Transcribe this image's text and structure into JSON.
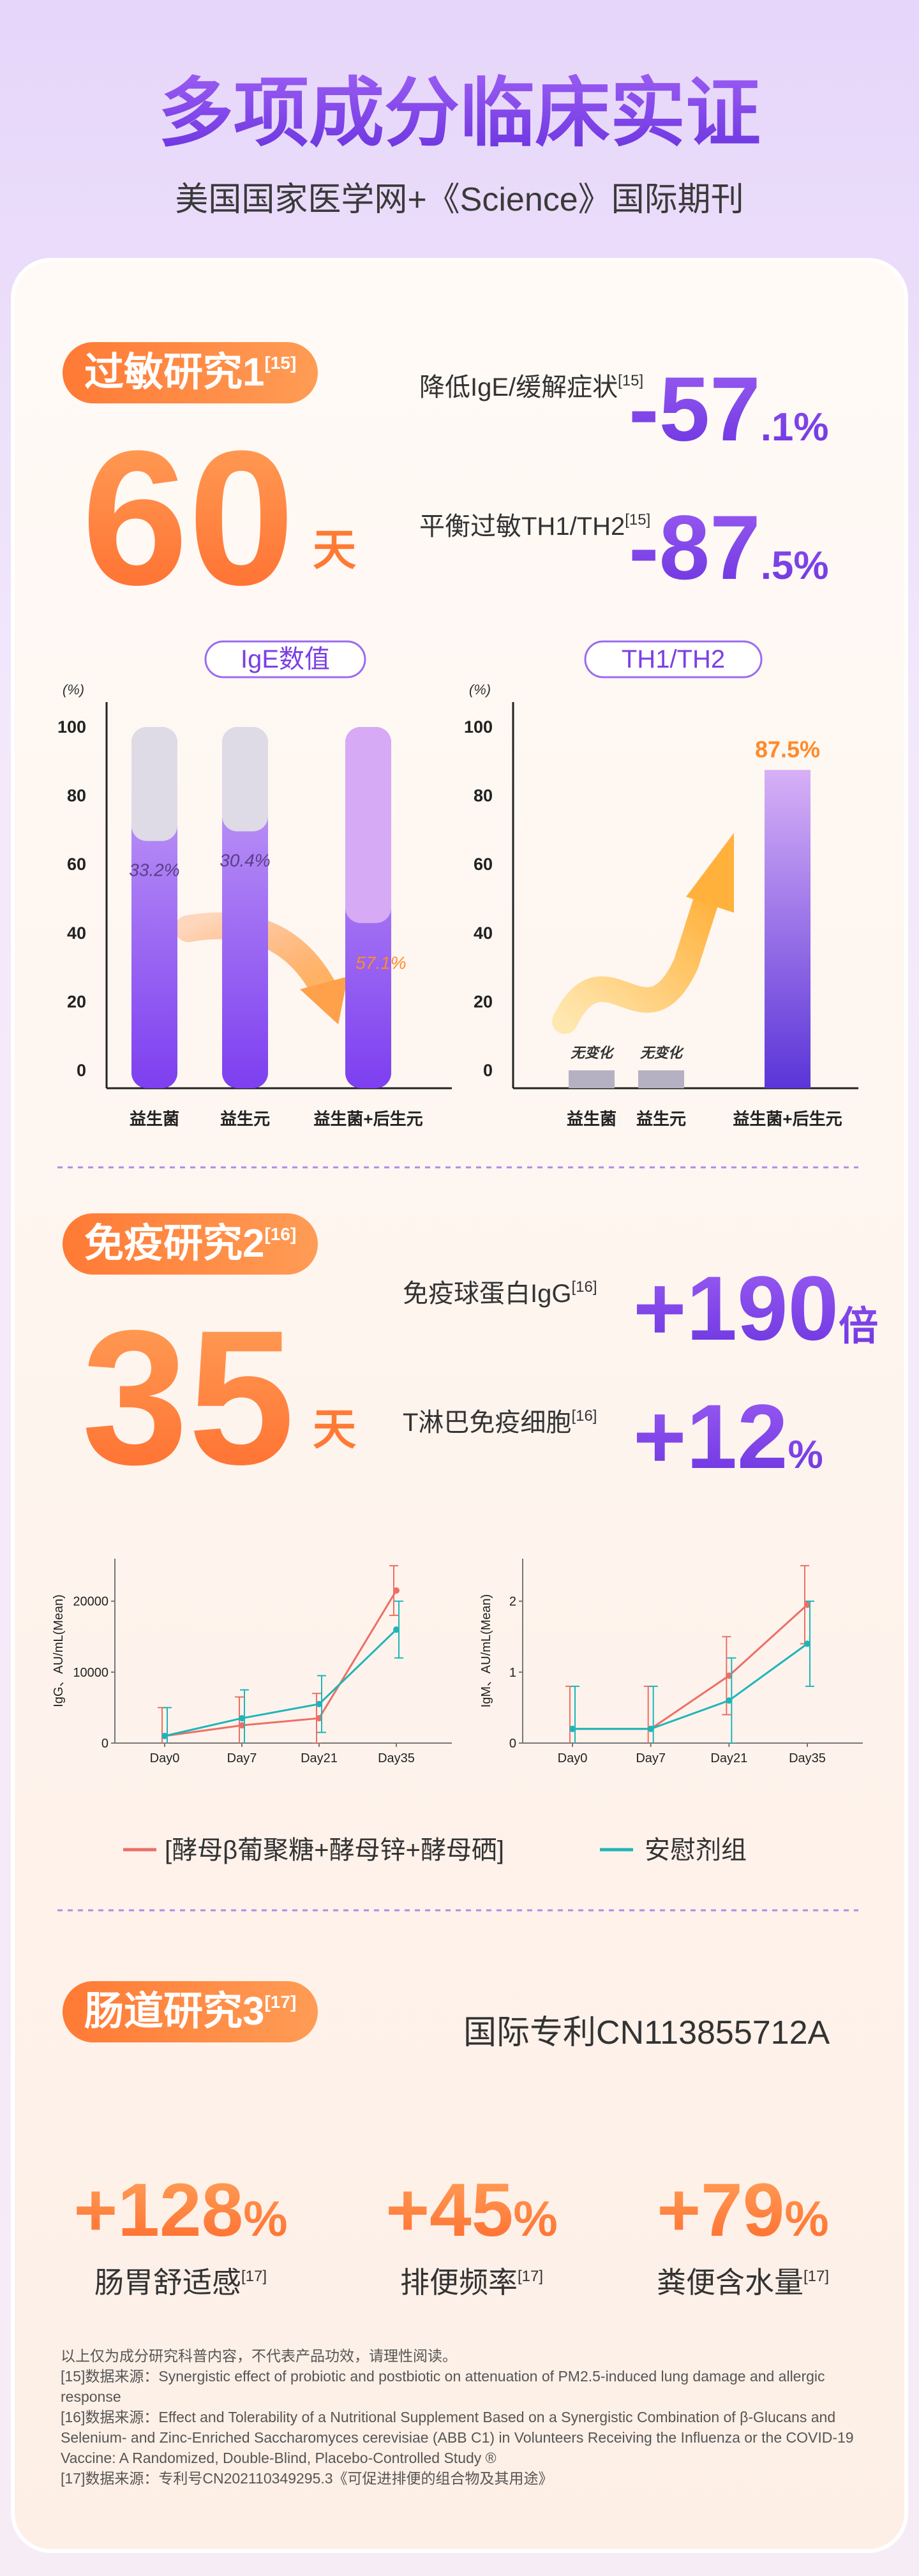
{
  "header": {
    "title": "多项成分临床实证",
    "subtitle": "美国国家医学网+《Science》国际期刊"
  },
  "study1": {
    "badge": "过敏研究1",
    "badge_ref": "[15]",
    "days": "60",
    "days_unit": "天",
    "stats": [
      {
        "label": "降低IgE/缓解症状",
        "ref": "[15]",
        "main": "-57",
        "suffix": ".1%"
      },
      {
        "label": "平衡过敏TH1/TH2",
        "ref": "[15]",
        "main": "-87",
        "suffix": ".5%"
      }
    ]
  },
  "study2": {
    "badge": "免疫研究2",
    "badge_ref": "[16]",
    "days": "35",
    "days_unit": "天",
    "stats": [
      {
        "label": "免疫球蛋白IgG",
        "ref": "[16]",
        "main": "+190",
        "suffix": "倍"
      },
      {
        "label": "T淋巴免疫细胞",
        "ref": "[16]",
        "main": "+12",
        "suffix": "%"
      }
    ]
  },
  "study3": {
    "badge": "肠道研究3",
    "badge_ref": "[17]",
    "patent": "国际专利CN113855712A",
    "stats": [
      {
        "main": "+128",
        "suffix": "%",
        "label": "肠胃舒适感",
        "ref": "[17]"
      },
      {
        "main": "+45",
        "suffix": "%",
        "label": "排便频率",
        "ref": "[17]"
      },
      {
        "main": "+79",
        "suffix": "%",
        "label": "粪便含水量",
        "ref": "[17]"
      }
    ]
  },
  "footnotes": [
    "以上仅为成分研究科普内容，不代表产品功效，请理性阅读。",
    "[15]数据来源：Synergistic effect of probiotic and postbiotic on attenuation of PM2.5-induced lung damage and allergic response",
    "[16]数据来源：Effect and Tolerability of a Nutritional Supplement Based on a Synergistic Combination of β-Glucans and Selenium- and Zinc-Enriched Saccharomyces cerevisiae (ABB C1) in Volunteers Receiving the Influenza or the COVID-19 Vaccine: A Randomized, Double-Blind, Placebo-Controlled Study ®",
    "[17]数据来源：专利号CN202110349295.3《可促进排便的组合物及其用途》"
  ],
  "chart_data": [
    {
      "type": "bar",
      "title": "IgE数值",
      "y_unit": "(%)",
      "categories": [
        "益生菌",
        "益生元",
        "益生菌+后生元"
      ],
      "values": [
        33.2,
        30.4,
        57.1
      ],
      "value_labels": [
        "33.2%",
        "30.4%",
        "57.1%"
      ],
      "color": "#8a4cf2",
      "reduction_colors": [
        "#dedbe6",
        "#dedbe6",
        "#d6aaf5"
      ],
      "ylim": [
        0,
        100
      ],
      "yticks": [
        0,
        20,
        40,
        60,
        80,
        100
      ]
    },
    {
      "type": "bar",
      "title": "TH1/TH2",
      "y_unit": "(%)",
      "categories": [
        "益生菌",
        "益生元",
        "益生菌+后生元"
      ],
      "values": [
        0,
        0,
        87.5
      ],
      "value_labels": [
        "无变化",
        "无变化",
        "87.5%"
      ],
      "colors": [
        "#b5b0c2",
        "#b5b0c2",
        "#5b35d8"
      ],
      "ylim": [
        0,
        100
      ],
      "yticks": [
        0,
        20,
        40,
        60,
        80,
        100
      ]
    },
    {
      "type": "line",
      "y_label": "IgG、AU/mL(Mean)",
      "categories": [
        "Day0",
        "Day7",
        "Day21",
        "Day35"
      ],
      "ylim": [
        0,
        26000
      ],
      "yticks": [
        0,
        10000,
        20000
      ],
      "series": [
        {
          "name": "[酵母β葡聚糖+酵母锌+酵母硒]",
          "color": "#ec6f66",
          "values": [
            1000,
            2500,
            3500,
            21500
          ],
          "errors": [
            4000,
            4000,
            3500,
            3500
          ]
        },
        {
          "name": "安慰剂组",
          "color": "#1fb5b8",
          "values": [
            1000,
            3500,
            5500,
            16000
          ],
          "errors": [
            4000,
            4000,
            4000,
            4000
          ]
        }
      ]
    },
    {
      "type": "line",
      "y_label": "IgM、AU/mL(Mean)",
      "categories": [
        "Day0",
        "Day7",
        "Day21",
        "Day35"
      ],
      "ylim": [
        0,
        2.6
      ],
      "yticks": [
        0,
        1,
        2
      ],
      "series": [
        {
          "color": "#ec6f66",
          "values": [
            0.2,
            0.2,
            0.95,
            1.95
          ],
          "errors": [
            0.6,
            0.6,
            0.55,
            0.55
          ]
        },
        {
          "color": "#1fb5b8",
          "values": [
            0.2,
            0.2,
            0.6,
            1.4
          ],
          "errors": [
            0.6,
            0.6,
            0.6,
            0.6
          ]
        }
      ]
    }
  ]
}
